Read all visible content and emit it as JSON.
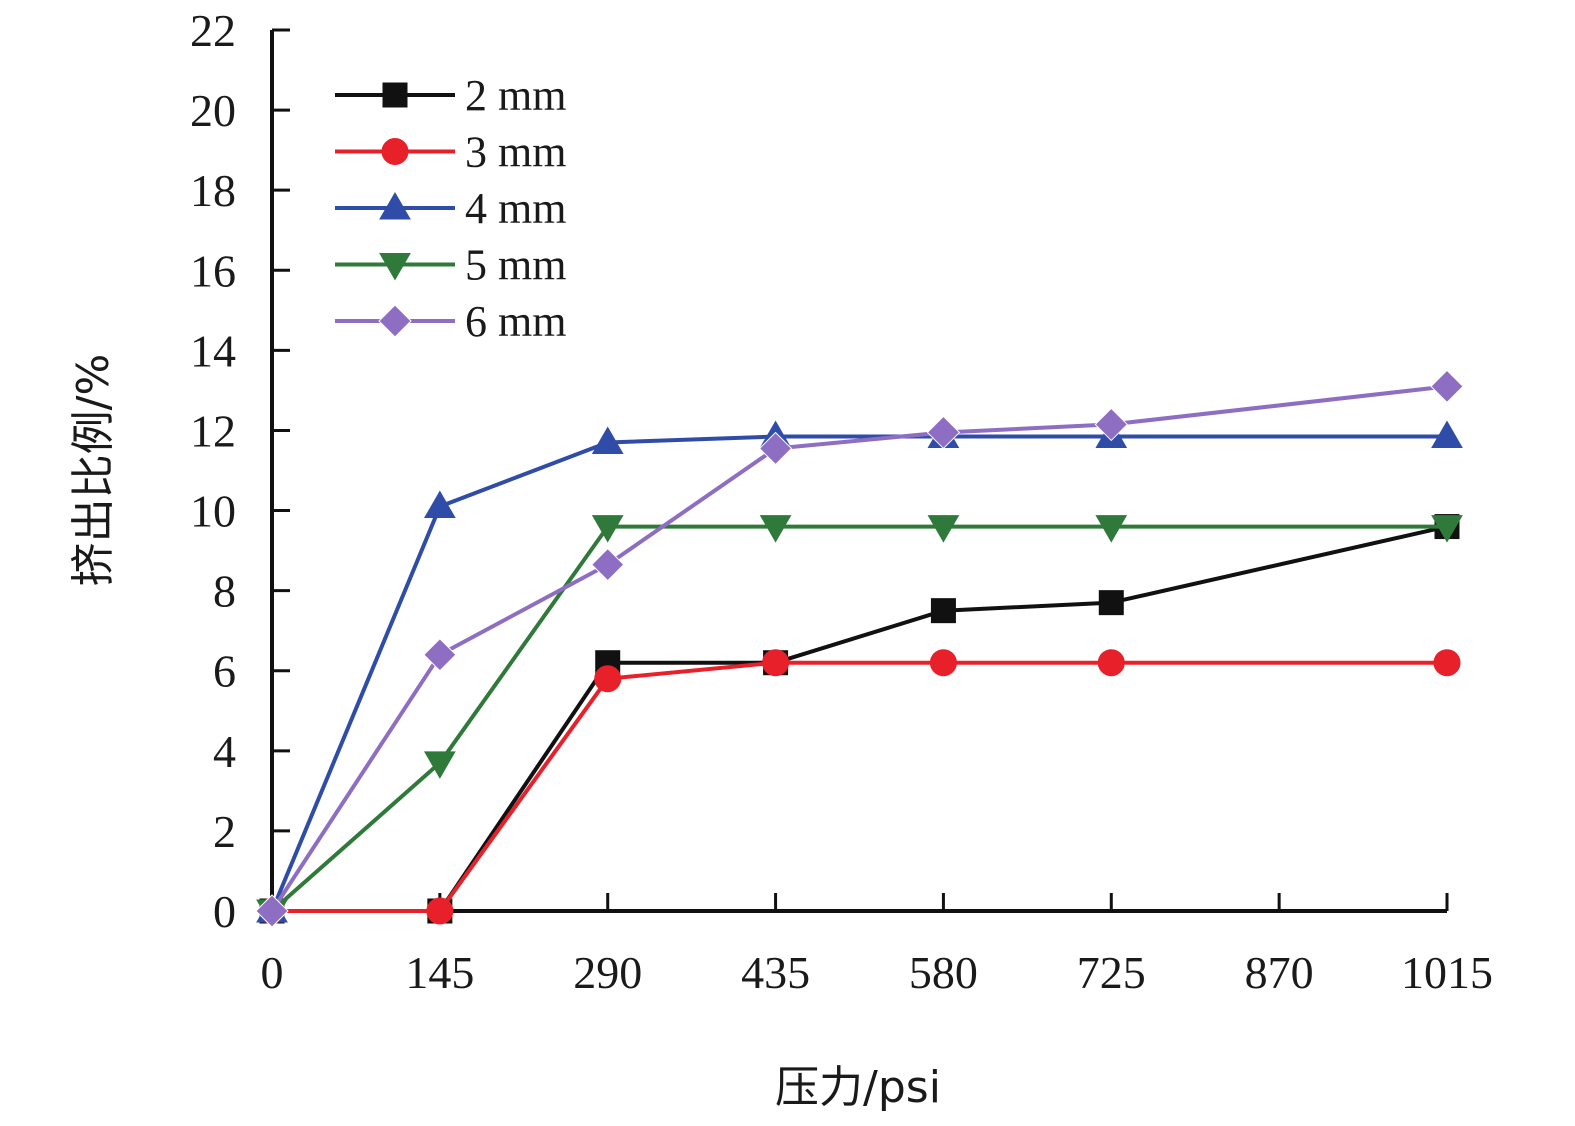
{
  "chart_data": {
    "type": "line",
    "xlabel": "压力/psi",
    "ylabel": "挤出比例/%",
    "x": [
      0,
      145,
      290,
      435,
      580,
      725,
      1015
    ],
    "x_ticks": [
      "0",
      "145",
      "290",
      "435",
      "580",
      "725",
      "870",
      "1015"
    ],
    "xlim": [
      0,
      1015
    ],
    "y_ticks": [
      "0",
      "2",
      "4",
      "6",
      "8",
      "10",
      "12",
      "14",
      "16",
      "18",
      "20",
      "22"
    ],
    "ylim": [
      0,
      22
    ],
    "grid": false,
    "legend_position": "top-left",
    "series": [
      {
        "name": "2 mm",
        "color": "#111111",
        "marker": "square",
        "values": [
          0,
          0,
          6.2,
          6.2,
          7.5,
          7.7,
          9.6
        ]
      },
      {
        "name": "3 mm",
        "color": "#e8202a",
        "marker": "circle",
        "values": [
          0,
          0,
          5.8,
          6.2,
          6.2,
          6.2,
          6.2
        ]
      },
      {
        "name": "4 mm",
        "color": "#2f4da8",
        "marker": "triangle-up",
        "values": [
          0,
          10.1,
          11.7,
          11.85,
          11.85,
          11.85,
          11.85
        ]
      },
      {
        "name": "5 mm",
        "color": "#2f7a3a",
        "marker": "triangle-down",
        "values": [
          0,
          3.7,
          9.6,
          9.6,
          9.6,
          9.6,
          9.6
        ]
      },
      {
        "name": "6 mm",
        "color": "#8e6ec2",
        "marker": "diamond",
        "values": [
          0,
          6.4,
          8.65,
          11.55,
          11.95,
          12.15,
          13.1
        ]
      }
    ]
  }
}
